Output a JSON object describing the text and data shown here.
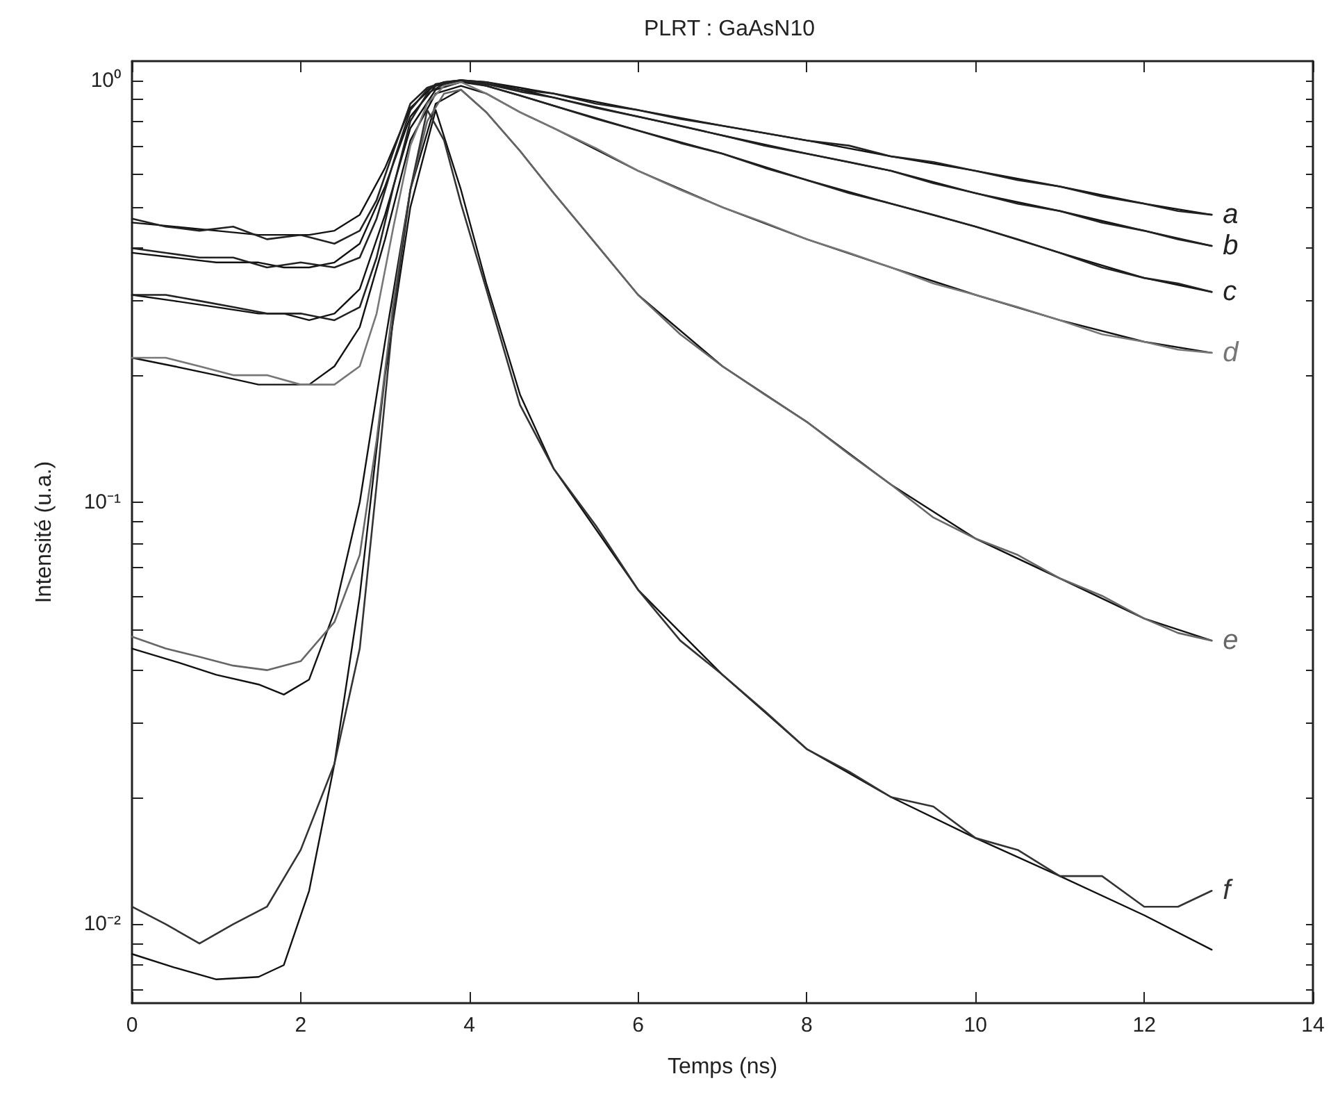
{
  "chart_data": {
    "type": "line",
    "title": "PLRT : GaAsN10",
    "xlabel": "Temps (ns)",
    "ylabel": "Intensité (u.a.)",
    "x": [
      0,
      0.4,
      0.8,
      1.2,
      1.6,
      2.0,
      2.4,
      2.7,
      2.9,
      3.1,
      3.3,
      3.5,
      3.7,
      3.9,
      4.2,
      4.6,
      5,
      5.5,
      6,
      6.5,
      7,
      7.5,
      8,
      8.5,
      9,
      9.5,
      10,
      10.5,
      11,
      11.5,
      12,
      12.4,
      12.8
    ],
    "series": [
      {
        "name": "a",
        "color": "#222222",
        "values": [
          0.47,
          0.45,
          0.44,
          0.45,
          0.42,
          0.43,
          0.41,
          0.44,
          0.52,
          0.68,
          0.88,
          0.96,
          0.99,
          1.0,
          0.99,
          0.95,
          0.93,
          0.88,
          0.85,
          0.81,
          0.78,
          0.75,
          0.72,
          0.7,
          0.66,
          0.64,
          0.61,
          0.58,
          0.56,
          0.53,
          0.51,
          0.49,
          0.48
        ]
      },
      {
        "name": "b",
        "color": "#222222",
        "values": [
          0.4,
          0.39,
          0.38,
          0.38,
          0.36,
          0.37,
          0.36,
          0.38,
          0.47,
          0.64,
          0.85,
          0.95,
          0.99,
          1.0,
          0.98,
          0.94,
          0.91,
          0.86,
          0.82,
          0.78,
          0.74,
          0.7,
          0.67,
          0.64,
          0.61,
          0.57,
          0.54,
          0.51,
          0.49,
          0.46,
          0.44,
          0.42,
          0.405
        ]
      },
      {
        "name": "c",
        "color": "#222222",
        "values": [
          0.31,
          0.31,
          0.3,
          0.29,
          0.28,
          0.28,
          0.27,
          0.29,
          0.38,
          0.56,
          0.8,
          0.93,
          0.98,
          1.0,
          0.97,
          0.92,
          0.87,
          0.81,
          0.76,
          0.71,
          0.67,
          0.62,
          0.58,
          0.54,
          0.51,
          0.48,
          0.45,
          0.42,
          0.39,
          0.36,
          0.34,
          0.33,
          0.315
        ]
      },
      {
        "name": "d",
        "color": "#777777",
        "values": [
          0.22,
          0.22,
          0.21,
          0.2,
          0.2,
          0.19,
          0.19,
          0.21,
          0.28,
          0.45,
          0.7,
          0.88,
          0.97,
          0.99,
          0.93,
          0.84,
          0.77,
          0.69,
          0.61,
          0.55,
          0.5,
          0.46,
          0.42,
          0.39,
          0.36,
          0.33,
          0.31,
          0.29,
          0.27,
          0.25,
          0.24,
          0.23,
          0.226
        ]
      },
      {
        "name": "e",
        "color": "#666666",
        "values": [
          0.048,
          0.045,
          0.043,
          0.041,
          0.04,
          0.042,
          0.052,
          0.075,
          0.14,
          0.3,
          0.55,
          0.8,
          0.93,
          0.95,
          0.84,
          0.68,
          0.54,
          0.41,
          0.31,
          0.25,
          0.21,
          0.18,
          0.155,
          0.13,
          0.11,
          0.092,
          0.082,
          0.075,
          0.066,
          0.06,
          0.053,
          0.049,
          0.047
        ]
      },
      {
        "name": "f",
        "color": "#333333",
        "values": [
          0.011,
          0.01,
          0.009,
          0.01,
          0.011,
          0.015,
          0.024,
          0.045,
          0.11,
          0.28,
          0.55,
          0.85,
          0.72,
          0.51,
          0.32,
          0.17,
          0.12,
          0.088,
          0.062,
          0.047,
          0.039,
          0.032,
          0.026,
          0.023,
          0.02,
          0.019,
          0.016,
          0.015,
          0.013,
          0.013,
          0.011,
          0.011,
          0.012
        ]
      },
      {
        "color": "#111111",
        "x": [
          0,
          0.5,
          1,
          1.5,
          1.8,
          2.1,
          2.4,
          2.7,
          3.0,
          3.3,
          3.6,
          3.9,
          4.2,
          4.6,
          5,
          6,
          7,
          8,
          9,
          10,
          11,
          12,
          12.8
        ],
        "values": [
          0.46,
          0.45,
          0.44,
          0.43,
          0.43,
          0.43,
          0.44,
          0.48,
          0.62,
          0.86,
          0.98,
          1.0,
          0.99,
          0.96,
          0.93,
          0.85,
          0.78,
          0.72,
          0.66,
          0.61,
          0.56,
          0.51,
          0.48
        ]
      },
      {
        "color": "#111111",
        "x": [
          0,
          0.5,
          1,
          1.5,
          1.8,
          2.1,
          2.4,
          2.7,
          3.0,
          3.3,
          3.6,
          3.9,
          4.2,
          4.6,
          5,
          6,
          7,
          8,
          9,
          10,
          11,
          12,
          12.8
        ],
        "values": [
          0.39,
          0.38,
          0.37,
          0.37,
          0.36,
          0.36,
          0.37,
          0.41,
          0.56,
          0.82,
          0.97,
          1.0,
          0.98,
          0.95,
          0.91,
          0.82,
          0.74,
          0.67,
          0.61,
          0.54,
          0.49,
          0.44,
          0.405
        ]
      },
      {
        "color": "#111111",
        "x": [
          0,
          0.5,
          1,
          1.5,
          1.8,
          2.1,
          2.4,
          2.7,
          3.0,
          3.3,
          3.6,
          3.9,
          4.2,
          4.6,
          5,
          6,
          7,
          8,
          9,
          10,
          11,
          12,
          12.8
        ],
        "values": [
          0.31,
          0.3,
          0.29,
          0.28,
          0.28,
          0.27,
          0.28,
          0.32,
          0.48,
          0.77,
          0.95,
          0.99,
          0.97,
          0.92,
          0.87,
          0.76,
          0.67,
          0.58,
          0.51,
          0.45,
          0.39,
          0.34,
          0.315
        ]
      },
      {
        "color": "#111111",
        "x": [
          0,
          0.5,
          1,
          1.5,
          1.8,
          2.1,
          2.4,
          2.7,
          3.0,
          3.3,
          3.6,
          3.9,
          4.2,
          4.6,
          5,
          6,
          7,
          8,
          9,
          10,
          11,
          12,
          12.8
        ],
        "values": [
          0.22,
          0.21,
          0.2,
          0.19,
          0.19,
          0.19,
          0.21,
          0.26,
          0.42,
          0.72,
          0.93,
          0.97,
          0.93,
          0.84,
          0.77,
          0.61,
          0.5,
          0.42,
          0.36,
          0.31,
          0.27,
          0.24,
          0.226
        ]
      },
      {
        "color": "#111111",
        "x": [
          0,
          0.5,
          1,
          1.5,
          1.8,
          2.1,
          2.4,
          2.7,
          3.0,
          3.3,
          3.6,
          3.9,
          4.2,
          4.6,
          5,
          6,
          7,
          8,
          9,
          10,
          11,
          12,
          12.8
        ],
        "values": [
          0.045,
          0.042,
          0.039,
          0.037,
          0.035,
          0.038,
          0.055,
          0.1,
          0.24,
          0.55,
          0.88,
          0.95,
          0.84,
          0.68,
          0.54,
          0.31,
          0.21,
          0.155,
          0.11,
          0.082,
          0.066,
          0.053,
          0.047
        ]
      },
      {
        "color": "#111111",
        "x": [
          0,
          0.5,
          1,
          1.5,
          1.8,
          2.1,
          2.4,
          2.7,
          3.0,
          3.3,
          3.6,
          3.9,
          4.2,
          4.6,
          5,
          6,
          7,
          8,
          9,
          10,
          11,
          12,
          12.8
        ],
        "values": [
          0.0085,
          0.0079,
          0.0074,
          0.0075,
          0.008,
          0.012,
          0.024,
          0.06,
          0.2,
          0.5,
          0.85,
          0.55,
          0.33,
          0.18,
          0.12,
          0.062,
          0.039,
          0.026,
          0.02,
          0.016,
          0.013,
          0.0105,
          0.0087
        ]
      }
    ],
    "xlim": [
      0,
      14
    ],
    "xticks": [
      0,
      2,
      4,
      6,
      8,
      10,
      12,
      14
    ],
    "ylim": [
      0.0065,
      1.11
    ],
    "yticks": [
      {
        "value": 0.007,
        "label": null
      },
      {
        "value": 0.008,
        "label": null
      },
      {
        "value": 0.009,
        "label": null
      },
      {
        "value": 0.01,
        "label": "10⁻²"
      },
      {
        "value": 0.02,
        "label": null
      },
      {
        "value": 0.03,
        "label": null
      },
      {
        "value": 0.04,
        "label": null
      },
      {
        "value": 0.05,
        "label": null
      },
      {
        "value": 0.06,
        "label": null
      },
      {
        "value": 0.07,
        "label": null
      },
      {
        "value": 0.08,
        "label": null
      },
      {
        "value": 0.09,
        "label": null
      },
      {
        "value": 0.1,
        "label": "10⁻¹"
      },
      {
        "value": 0.2,
        "label": null
      },
      {
        "value": 0.3,
        "label": null
      },
      {
        "value": 0.4,
        "label": null
      },
      {
        "value": 0.5,
        "label": null
      },
      {
        "value": 0.6,
        "label": null
      },
      {
        "value": 0.7,
        "label": null
      },
      {
        "value": 0.8,
        "label": null
      },
      {
        "value": 0.9,
        "label": null
      },
      {
        "value": 1,
        "label": "10⁰"
      }
    ],
    "log": "y",
    "grid": false,
    "legend": false
  }
}
